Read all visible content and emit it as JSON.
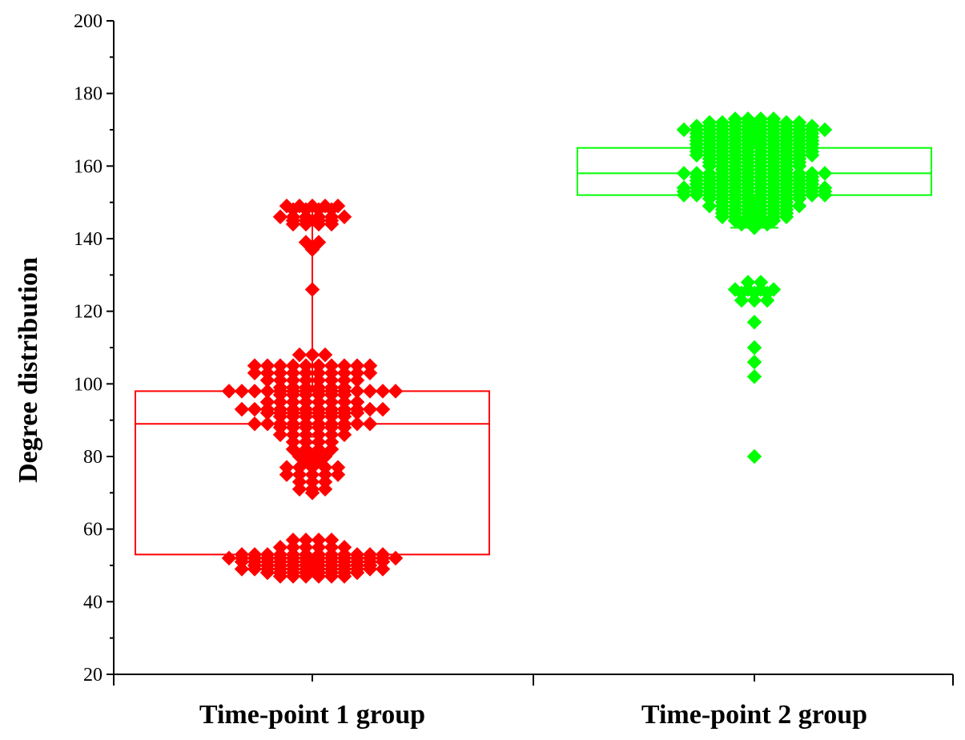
{
  "chart_data": {
    "type": "scatter",
    "subtype": "box-with-jittered-points",
    "title": "",
    "xlabel": "",
    "ylabel": "Degree distribution",
    "ylim": [
      20,
      200
    ],
    "yticks": [
      20,
      40,
      60,
      80,
      100,
      120,
      140,
      160,
      180,
      200
    ],
    "grid": false,
    "legend": "none",
    "categories": [
      "Time-point 1 group",
      "Time-point 2 group"
    ],
    "series": [
      {
        "category": "Time-point 1 group",
        "color": "#ff0000",
        "box": {
          "q1": 53,
          "median": 89,
          "q3": 98,
          "mean": 84.5,
          "whisker_low": 47,
          "whisker_high": 149
        },
        "point_levels": [
          {
            "value": 149,
            "count": 5
          },
          {
            "value": 148,
            "count": 4
          },
          {
            "value": 146,
            "count": 6
          },
          {
            "value": 145,
            "count": 4
          },
          {
            "value": 144,
            "count": 4
          },
          {
            "value": 139,
            "count": 2
          },
          {
            "value": 137,
            "count": 1
          },
          {
            "value": 126,
            "count": 1
          },
          {
            "value": 108,
            "count": 3
          },
          {
            "value": 105,
            "count": 10
          },
          {
            "value": 103,
            "count": 10
          },
          {
            "value": 101,
            "count": 8
          },
          {
            "value": 99,
            "count": 6
          },
          {
            "value": 98,
            "count": 14
          },
          {
            "value": 97,
            "count": 6
          },
          {
            "value": 95,
            "count": 8
          },
          {
            "value": 93,
            "count": 12
          },
          {
            "value": 92,
            "count": 8
          },
          {
            "value": 91,
            "count": 6
          },
          {
            "value": 89,
            "count": 10
          },
          {
            "value": 88,
            "count": 6
          },
          {
            "value": 86,
            "count": 6
          },
          {
            "value": 84,
            "count": 4
          },
          {
            "value": 82,
            "count": 4
          },
          {
            "value": 80,
            "count": 3
          },
          {
            "value": 79,
            "count": 2
          },
          {
            "value": 77,
            "count": 5
          },
          {
            "value": 75,
            "count": 5
          },
          {
            "value": 73,
            "count": 3
          },
          {
            "value": 71,
            "count": 3
          },
          {
            "value": 70,
            "count": 1
          },
          {
            "value": 57,
            "count": 4
          },
          {
            "value": 55,
            "count": 6
          },
          {
            "value": 53,
            "count": 12
          },
          {
            "value": 52,
            "count": 14
          },
          {
            "value": 51,
            "count": 12
          },
          {
            "value": 50,
            "count": 10
          },
          {
            "value": 49,
            "count": 12
          },
          {
            "value": 48,
            "count": 8
          },
          {
            "value": 47,
            "count": 6
          }
        ]
      },
      {
        "category": "Time-point 2 group",
        "color": "#00ff00",
        "box": {
          "q1": 152,
          "median": 158,
          "q3": 165,
          "mean": 156,
          "whisker_low": 143,
          "whisker_high": 173
        },
        "point_levels": [
          {
            "value": 173,
            "count": 4
          },
          {
            "value": 172,
            "count": 8
          },
          {
            "value": 171,
            "count": 10
          },
          {
            "value": 170,
            "count": 12
          },
          {
            "value": 169,
            "count": 10
          },
          {
            "value": 168,
            "count": 10
          },
          {
            "value": 167,
            "count": 10
          },
          {
            "value": 166,
            "count": 10
          },
          {
            "value": 165,
            "count": 10
          },
          {
            "value": 164,
            "count": 10
          },
          {
            "value": 163,
            "count": 10
          },
          {
            "value": 162,
            "count": 8
          },
          {
            "value": 161,
            "count": 8
          },
          {
            "value": 160,
            "count": 8
          },
          {
            "value": 159,
            "count": 6
          },
          {
            "value": 158,
            "count": 12
          },
          {
            "value": 157,
            "count": 10
          },
          {
            "value": 156,
            "count": 10
          },
          {
            "value": 155,
            "count": 10
          },
          {
            "value": 154,
            "count": 12
          },
          {
            "value": 153,
            "count": 12
          },
          {
            "value": 152,
            "count": 12
          },
          {
            "value": 151,
            "count": 8
          },
          {
            "value": 150,
            "count": 6
          },
          {
            "value": 149,
            "count": 8
          },
          {
            "value": 148,
            "count": 6
          },
          {
            "value": 147,
            "count": 6
          },
          {
            "value": 146,
            "count": 6
          },
          {
            "value": 145,
            "count": 4
          },
          {
            "value": 144,
            "count": 3
          },
          {
            "value": 143,
            "count": 1
          },
          {
            "value": 128,
            "count": 2
          },
          {
            "value": 126,
            "count": 4
          },
          {
            "value": 125,
            "count": 3
          },
          {
            "value": 123,
            "count": 3
          },
          {
            "value": 117,
            "count": 1
          },
          {
            "value": 110,
            "count": 1
          },
          {
            "value": 106,
            "count": 1
          },
          {
            "value": 102,
            "count": 1
          },
          {
            "value": 80,
            "count": 1
          }
        ]
      }
    ]
  }
}
